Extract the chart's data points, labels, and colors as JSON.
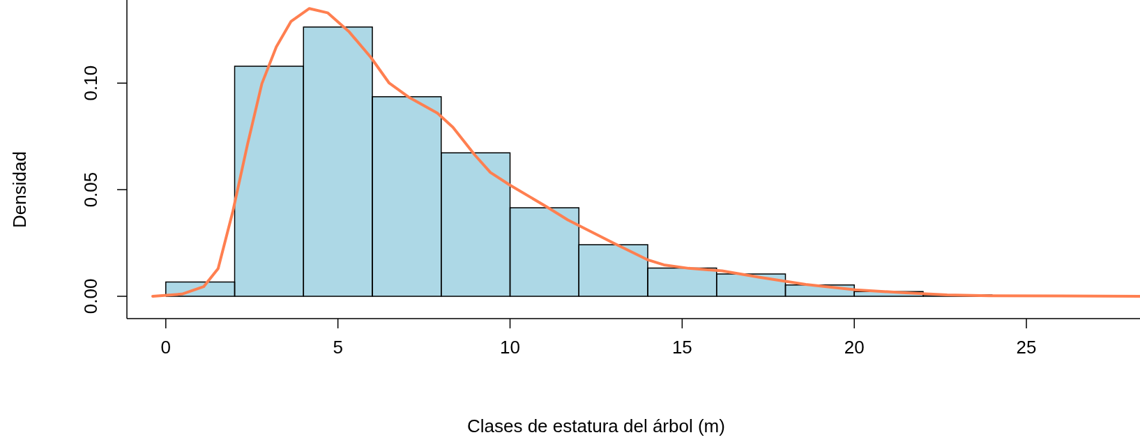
{
  "chart_data": {
    "type": "histogram",
    "xlabel": "Clases de estatura del árbol (m)",
    "ylabel": "Densidad",
    "bins": [
      0,
      2,
      4,
      6,
      8,
      10,
      12,
      14,
      16,
      18,
      20,
      22,
      24
    ],
    "values": [
      0.0067,
      0.1079,
      0.1263,
      0.0936,
      0.0673,
      0.0415,
      0.0242,
      0.0132,
      0.0104,
      0.0053,
      0.0022,
      0.0006
    ],
    "color": "#add8e6",
    "series": [
      {
        "type": "line",
        "color": "#ff7f50",
        "x": [
          -0.38,
          0.47,
          1.1,
          1.52,
          1.95,
          2.37,
          2.79,
          3.21,
          3.64,
          4.17,
          4.7,
          5.33,
          5.96,
          6.49,
          7.08,
          7.89,
          8.34,
          8.98,
          9.43,
          9.98,
          11.06,
          11.68,
          13.0,
          13.98,
          14.47,
          15.19,
          16.16,
          17.25,
          18.59,
          20.04,
          21.49,
          22.7,
          23.92,
          28.3
        ],
        "values": [
          0,
          0.001,
          0.0045,
          0.013,
          0.04,
          0.071,
          0.0997,
          0.117,
          0.129,
          0.135,
          0.133,
          0.124,
          0.112,
          0.1,
          0.0932,
          0.0859,
          0.0793,
          0.0662,
          0.0581,
          0.0523,
          0.042,
          0.0358,
          0.025,
          0.0172,
          0.0147,
          0.0131,
          0.0119,
          0.0089,
          0.0055,
          0.003,
          0.0016,
          0.0006,
          0.0002,
          0
        ]
      }
    ],
    "xlim": [
      -1.13,
      28.3
    ],
    "xticks": [
      0,
      5,
      10,
      15,
      20,
      25
    ],
    "ylim": [
      -0.0105,
      0.139
    ],
    "yticks": [
      {
        "value": 0,
        "label": "0.00"
      },
      {
        "value": 0.05,
        "label": "0.05"
      },
      {
        "value": 0.1,
        "label": "0.10"
      }
    ],
    "grid": false,
    "legend": false,
    "line_style": "solid",
    "marker": "none"
  }
}
